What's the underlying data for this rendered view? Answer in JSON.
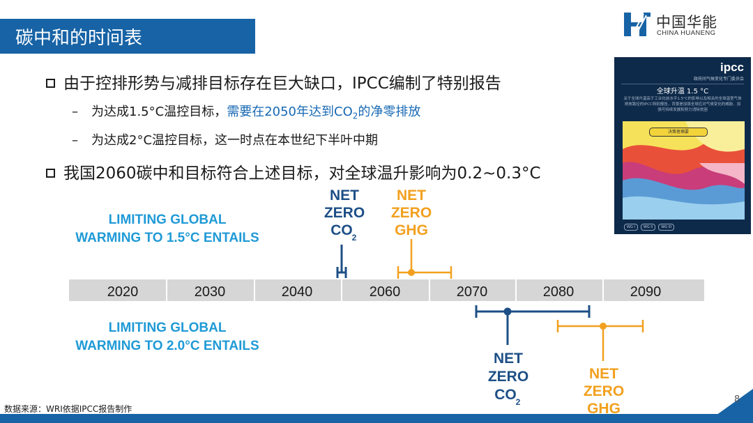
{
  "title": "碳中和的时间表",
  "logo": {
    "name_cn": "中国华能",
    "name_en": "CHINA HUANENG"
  },
  "bullets": [
    {
      "text": "由于控排形势与减排目标存在巨大缺口，IPCC编制了特别报告"
    },
    {
      "text": "我国2060碳中和目标符合上述目标，对全球温升影响为0.2~0.3°C"
    }
  ],
  "subbullets": [
    {
      "prefix": "为达成1.5°C温控目标，",
      "highlight_pre": "需要在2050年达到CO",
      "highlight_sub": "2",
      "highlight_post": "的净零排放"
    },
    {
      "text": "为达成2°C温控目标，这一时点在本世纪下半叶中期"
    }
  ],
  "ipcc_cover": {
    "brand": "ipcc",
    "org": "政府间气候变化专门委员会",
    "title": "全球升温 1.5 °C",
    "desc": "关于全球升温高于工业化前水平1.5°C的影响以及相关的全球温室气体排放路径的IPCC特别报告，背景是加强全球应对气候变化的威胁、加强可持续发展和努力消除贫困",
    "button": "决策者摘要",
    "tags": [
      "WG I",
      "WG II",
      "WG III"
    ]
  },
  "timeline": {
    "years": [
      "2020",
      "2030",
      "2040",
      "2060",
      "2070",
      "2080",
      "2090"
    ],
    "label_15": [
      "LIMITING GLOBAL",
      "WARMING TO 1.5°C ENTAILS"
    ],
    "label_20": [
      "LIMITING GLOBAL",
      "WARMING TO 2.0°C ENTAILS"
    ],
    "co2_label": [
      "NET",
      "ZERO",
      "CO",
      "2"
    ],
    "ghg_label": [
      "NET",
      "ZERO",
      "GHG"
    ],
    "colors": {
      "co2": "#1d4f86",
      "ghg": "#f2a01e",
      "blue_text": "#1f9ad6",
      "bar": "#d6d6d6"
    }
  },
  "source": "数据来源：WRI依据IPCC报告制作",
  "page_number": "8"
}
